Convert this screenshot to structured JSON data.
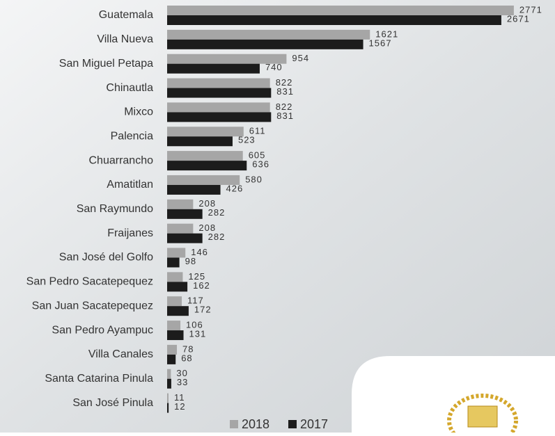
{
  "chart_data": {
    "type": "hbar",
    "categories": [
      "Guatemala",
      "Villa Nueva",
      "San Miguel Petapa",
      "Chinautla",
      "Mixco",
      "Palencia",
      "Chuarrancho",
      "Amatitlan",
      "San Raymundo",
      "Fraijanes",
      "San José del Golfo",
      "San Pedro Sacatepequez",
      "San Juan Sacatepequez",
      "San Pedro Ayampuc",
      "Villa Canales",
      "Santa Catarina Pinula",
      "San José Pinula"
    ],
    "series": [
      {
        "name": "2018",
        "color": "#a6a6a6",
        "values": [
          2771,
          1621,
          954,
          822,
          822,
          611,
          605,
          580,
          208,
          208,
          146,
          125,
          117,
          106,
          78,
          30,
          11
        ]
      },
      {
        "name": "2017",
        "color": "#1c1c1c",
        "values": [
          2671,
          1567,
          740,
          831,
          831,
          523,
          636,
          426,
          282,
          282,
          98,
          162,
          172,
          131,
          68,
          33,
          12
        ]
      }
    ],
    "xlim": [
      0,
      3100
    ],
    "legend": "bottom"
  }
}
